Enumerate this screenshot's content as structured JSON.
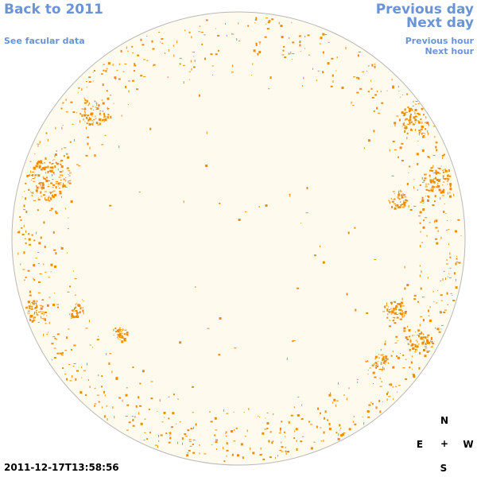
{
  "nav": {
    "back_label": "Back to 2011",
    "facular_label": "See facular data",
    "prev_day_label": "Previous day",
    "next_day_label": "Next day",
    "prev_hour_label": "Previous hour",
    "next_hour_label": "Next hour"
  },
  "image": {
    "timestamp": "2011-12-17T13:58:56"
  },
  "compass": {
    "north": "N",
    "east": "E",
    "center": "+",
    "west": "W",
    "south": "S"
  },
  "colors": {
    "link": "#6a93d8",
    "disk_fill": "#fffaee",
    "disk_edge": "#b8b8b8",
    "facula": "#f08c00"
  },
  "icons": [
    "sun-disk-icon",
    "compass-icon"
  ]
}
